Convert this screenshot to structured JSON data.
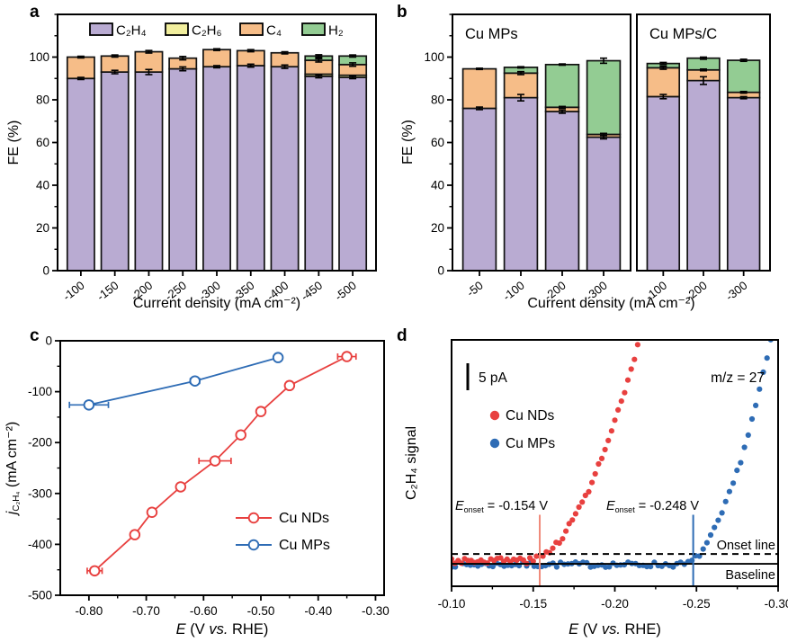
{
  "background": "#ffffff",
  "panel_labels": [
    "a",
    "b",
    "c",
    "d"
  ],
  "colors": {
    "c2h4": "#b9abd2",
    "c2h6": "#f2ef9e",
    "c4": "#f6bd88",
    "h2": "#93cc93",
    "cu_nds": "#e8403f",
    "cu_mps": "#2e6cb5",
    "axis": "#000000"
  },
  "chart_data": [
    {
      "panel": "a",
      "type": "bar",
      "stacked": true,
      "xlabel": "Current density (mA cm⁻²)",
      "ylabel": "FE (%)",
      "ylim": [
        0,
        120
      ],
      "yticks": [
        0,
        20,
        40,
        60,
        80,
        100
      ],
      "ytick_minor_step": 10,
      "categories": [
        "-100",
        "-150",
        "-200",
        "-250",
        "-300",
        "-350",
        "-400",
        "-450",
        "-500"
      ],
      "series": [
        {
          "name": "C₂H₄",
          "color": "#b9abd2",
          "values": [
            90,
            93,
            93,
            94.5,
            95.5,
            96,
            95.5,
            91,
            90.5
          ],
          "err": [
            0.5,
            0.8,
            1.2,
            0.9,
            0.5,
            0.7,
            0.8,
            0.7,
            0.6
          ]
        },
        {
          "name": "C₂H₆",
          "color": "#f2ef9e",
          "values": [
            0,
            0,
            0,
            0,
            0,
            0,
            0,
            1,
            1
          ],
          "err": [
            0,
            0,
            0,
            0,
            0,
            0,
            0,
            0,
            0
          ]
        },
        {
          "name": "C₄",
          "color": "#f6bd88",
          "values": [
            10,
            7.5,
            9.5,
            5,
            8,
            7,
            6.5,
            6.5,
            5
          ],
          "err": [
            0,
            0,
            0,
            0,
            0,
            0,
            0,
            0.8,
            0.8
          ]
        },
        {
          "name": "H₂",
          "color": "#93cc93",
          "values": [
            0,
            0,
            0,
            0,
            0,
            0,
            0,
            2,
            4
          ],
          "err": [
            0,
            0,
            0,
            0,
            0,
            0,
            0,
            0,
            0
          ]
        }
      ],
      "total_err": [
        0.4,
        0.5,
        0.6,
        0.8,
        0.4,
        0.5,
        0.5,
        0.6,
        0.5
      ],
      "legend_position": "top-inside"
    },
    {
      "panel": "b",
      "type": "bar",
      "stacked": true,
      "xlabel": "Current density (mA cm⁻²)",
      "ylabel": "FE (%)",
      "ylim": [
        0,
        120
      ],
      "yticks": [
        0,
        20,
        40,
        60,
        80,
        100
      ],
      "ytick_minor_step": 10,
      "groups": [
        {
          "title": "Cu MPs",
          "categories": [
            "-50",
            "-100",
            "-200",
            "-300"
          ],
          "series": [
            {
              "name": "C₂H₄",
              "color": "#b9abd2",
              "values": [
                76,
                81,
                74.5,
                62.5
              ],
              "err": [
                0.6,
                1.5,
                0.8,
                0.8
              ]
            },
            {
              "name": "C₄",
              "color": "#f6bd88",
              "values": [
                18.5,
                11.5,
                2,
                1.3
              ],
              "err": [
                0.3,
                0.7,
                0.4,
                0.5
              ]
            },
            {
              "name": "H₂",
              "color": "#93cc93",
              "values": [
                0,
                2.7,
                20,
                34.5
              ],
              "err": [
                0,
                0.3,
                0.3,
                1.2
              ]
            }
          ]
        },
        {
          "title": "Cu MPs/C",
          "categories": [
            "-100",
            "-200",
            "-300"
          ],
          "series": [
            {
              "name": "C₂H₄",
              "color": "#b9abd2",
              "values": [
                81.5,
                89,
                81
              ],
              "err": [
                1,
                1.8,
                0.5
              ]
            },
            {
              "name": "C₄",
              "color": "#f6bd88",
              "values": [
                13.5,
                5,
                2.5
              ],
              "err": [
                0.7,
                0.4,
                0.4
              ]
            },
            {
              "name": "H₂",
              "color": "#93cc93",
              "values": [
                2,
                5.5,
                15
              ],
              "err": [
                0.5,
                0.5,
                0.5
              ]
            }
          ]
        }
      ]
    },
    {
      "panel": "c",
      "type": "line",
      "xlabel_rich": [
        [
          "E",
          {
            "i": 1
          }
        ],
        [
          " (V ",
          {}
        ],
        [
          "vs.",
          {
            "i": 1
          }
        ],
        [
          " RHE)",
          {}
        ]
      ],
      "ylabel_rich": [
        [
          "j",
          {
            "i": 1
          }
        ],
        [
          "C₂H₄",
          {
            "sub": 1
          }
        ],
        [
          " (mA cm⁻²)",
          {}
        ]
      ],
      "xlim": [
        -0.85,
        -0.285
      ],
      "ylim": [
        -500,
        0
      ],
      "xticks": [
        -0.8,
        -0.7,
        -0.6,
        -0.5,
        -0.4,
        -0.3
      ],
      "xtick_labels": [
        "-0.80",
        "-0.70",
        "-0.60",
        "-0.50",
        "-0.40",
        "-0.30"
      ],
      "xtick_minor": [
        -0.75,
        -0.65,
        -0.55,
        -0.45,
        -0.35
      ],
      "yticks": [
        0,
        -100,
        -200,
        -300,
        -400,
        -500
      ],
      "ytick_labels": [
        "0",
        "-100",
        "-200",
        "-300",
        "-400",
        "-500"
      ],
      "ytick_minor": [
        -50,
        -150,
        -250,
        -350,
        -450
      ],
      "legend_position": "bottom-right-inside",
      "series": [
        {
          "name": "Cu NDs",
          "color": "#e8403f",
          "x": [
            -0.79,
            -0.72,
            -0.69,
            -0.64,
            -0.58,
            -0.535,
            -0.5,
            -0.45,
            -0.35
          ],
          "y": [
            -452,
            -381,
            -337,
            -287,
            -236,
            -185,
            -139,
            -88,
            -31
          ],
          "xerr": [
            0.013,
            0.007,
            0.005,
            0.004,
            0.028,
            0.005,
            0.004,
            0.006,
            0.016
          ]
        },
        {
          "name": "Cu MPs",
          "color": "#2e6cb5",
          "x": [
            -0.8,
            -0.615,
            -0.47
          ],
          "y": [
            -126,
            -79,
            -33
          ],
          "xerr": [
            0.034,
            0.008,
            0.006
          ]
        }
      ]
    },
    {
      "panel": "d",
      "type": "scatter",
      "xlabel_rich": [
        [
          "E",
          {
            "i": 1
          }
        ],
        [
          " (V ",
          {}
        ],
        [
          "vs.",
          {
            "i": 1
          }
        ],
        [
          " RHE)",
          {}
        ]
      ],
      "ylabel": "C₂H₄ signal",
      "xlim": [
        -0.1,
        -0.3
      ],
      "xticks": [
        -0.1,
        -0.15,
        -0.2,
        -0.25,
        -0.3
      ],
      "xtick_labels": [
        "-0.10",
        "-0.15",
        "-0.20",
        "-0.25",
        "-0.30"
      ],
      "xtick_minor": [
        -0.125,
        -0.175,
        -0.225,
        -0.275
      ],
      "scalebar_label": "5 pA",
      "mz_label": "m/z = 27",
      "legend": [
        {
          "name": "Cu NDs",
          "color": "#e8403f"
        },
        {
          "name": "Cu MPs",
          "color": "#2e6cb5"
        }
      ],
      "onset_annotations": [
        {
          "rich": [
            [
              "E",
              {
                "i": 1
              }
            ],
            [
              "onset",
              {
                "sub": 1
              }
            ],
            [
              " = -0.154 V",
              {}
            ]
          ],
          "x": -0.154,
          "color": "#e8403f",
          "line_color": "#f08a7a"
        },
        {
          "rich": [
            [
              "E",
              {
                "i": 1
              }
            ],
            [
              "onset",
              {
                "sub": 1
              }
            ],
            [
              " = -0.248 V",
              {}
            ]
          ],
          "x": -0.248,
          "color": "#2e6cb5",
          "line_color": "#2e6cb5"
        }
      ],
      "onset_line_label": "Onset line",
      "baseline_label": "Baseline",
      "levels": {
        "baseline": 0.091,
        "onset_line": 0.131
      },
      "series": [
        {
          "name": "Cu MPs",
          "color": "#2e6cb5",
          "baseline": 0.088,
          "onset": -0.242,
          "exit": -0.297,
          "power": 1.8,
          "noise": 0.011,
          "x_start": -0.1,
          "x_end": -0.298,
          "step": 0.0023,
          "seed": 7
        },
        {
          "name": "Cu NDs",
          "color": "#e8403f",
          "baseline": 0.105,
          "onset": -0.148,
          "exit": -0.217,
          "power": 1.8,
          "noise": 0.013,
          "x_start": -0.1,
          "x_end": -0.218,
          "step": 0.002,
          "seed": 3
        }
      ]
    }
  ]
}
